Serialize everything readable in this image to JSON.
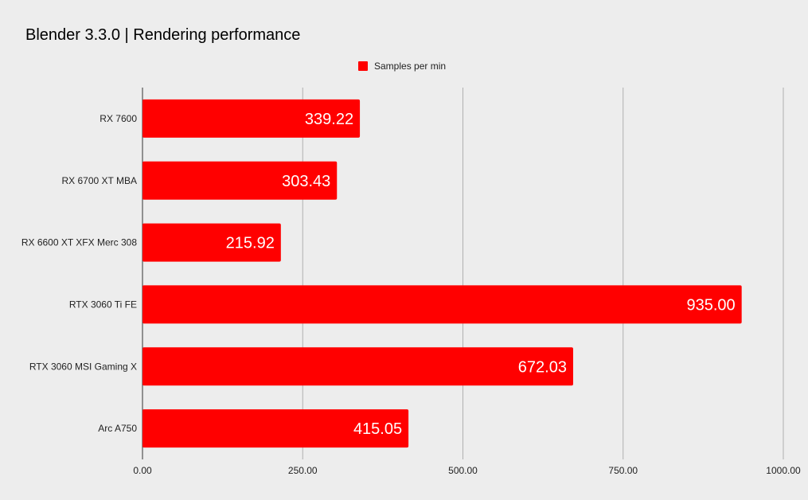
{
  "chart_data": {
    "type": "bar",
    "orientation": "horizontal",
    "title": "Blender 3.3.0 | Rendering performance",
    "xlabel": "",
    "ylabel": "",
    "categories": [
      "RX 7600",
      "RX 6700 XT MBA",
      "RX 6600 XT XFX Merc 308",
      "RTX 3060 Ti FE",
      "RTX 3060 MSI Gaming X",
      "Arc A750"
    ],
    "series": [
      {
        "name": "Samples per min",
        "values": [
          339.22,
          303.43,
          215.92,
          935.0,
          672.03,
          415.05
        ],
        "data_labels": [
          "339.22",
          "303.43",
          "215.92",
          "935.00",
          "672.03",
          "415.05"
        ],
        "color": "#ff0000"
      }
    ],
    "xlim": [
      0,
      1000
    ],
    "x_ticks": [
      0,
      250,
      500,
      750,
      1000
    ],
    "x_tick_labels": [
      "0.00",
      "250.00",
      "500.00",
      "750.00",
      "1000.00"
    ],
    "grid": "vertical",
    "legend_position": "top-center",
    "colors": {
      "background": "#ededed",
      "grid": "#b0b0b0",
      "axis": "#333333"
    }
  }
}
